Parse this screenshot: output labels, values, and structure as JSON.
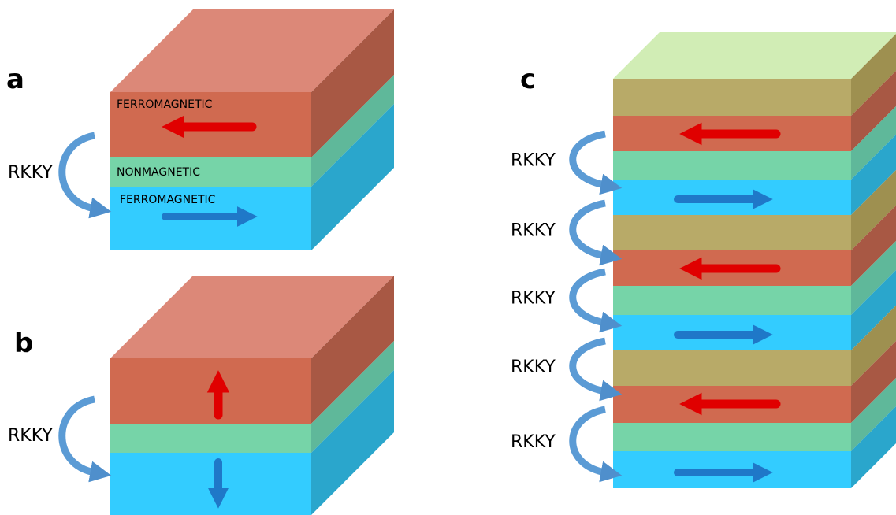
{
  "panel_a": {
    "label": "a",
    "coupling": "RKKY",
    "layers": [
      "FERROMAGNETIC",
      "NONMAGNETIC",
      "FERROMAGNETIC"
    ]
  },
  "panel_b": {
    "label": "b",
    "coupling": "RKKY"
  },
  "panel_c": {
    "label": "c",
    "couplings": [
      "RKKY",
      "RKKY",
      "RKKY",
      "RKKY",
      "RKKY"
    ]
  }
}
